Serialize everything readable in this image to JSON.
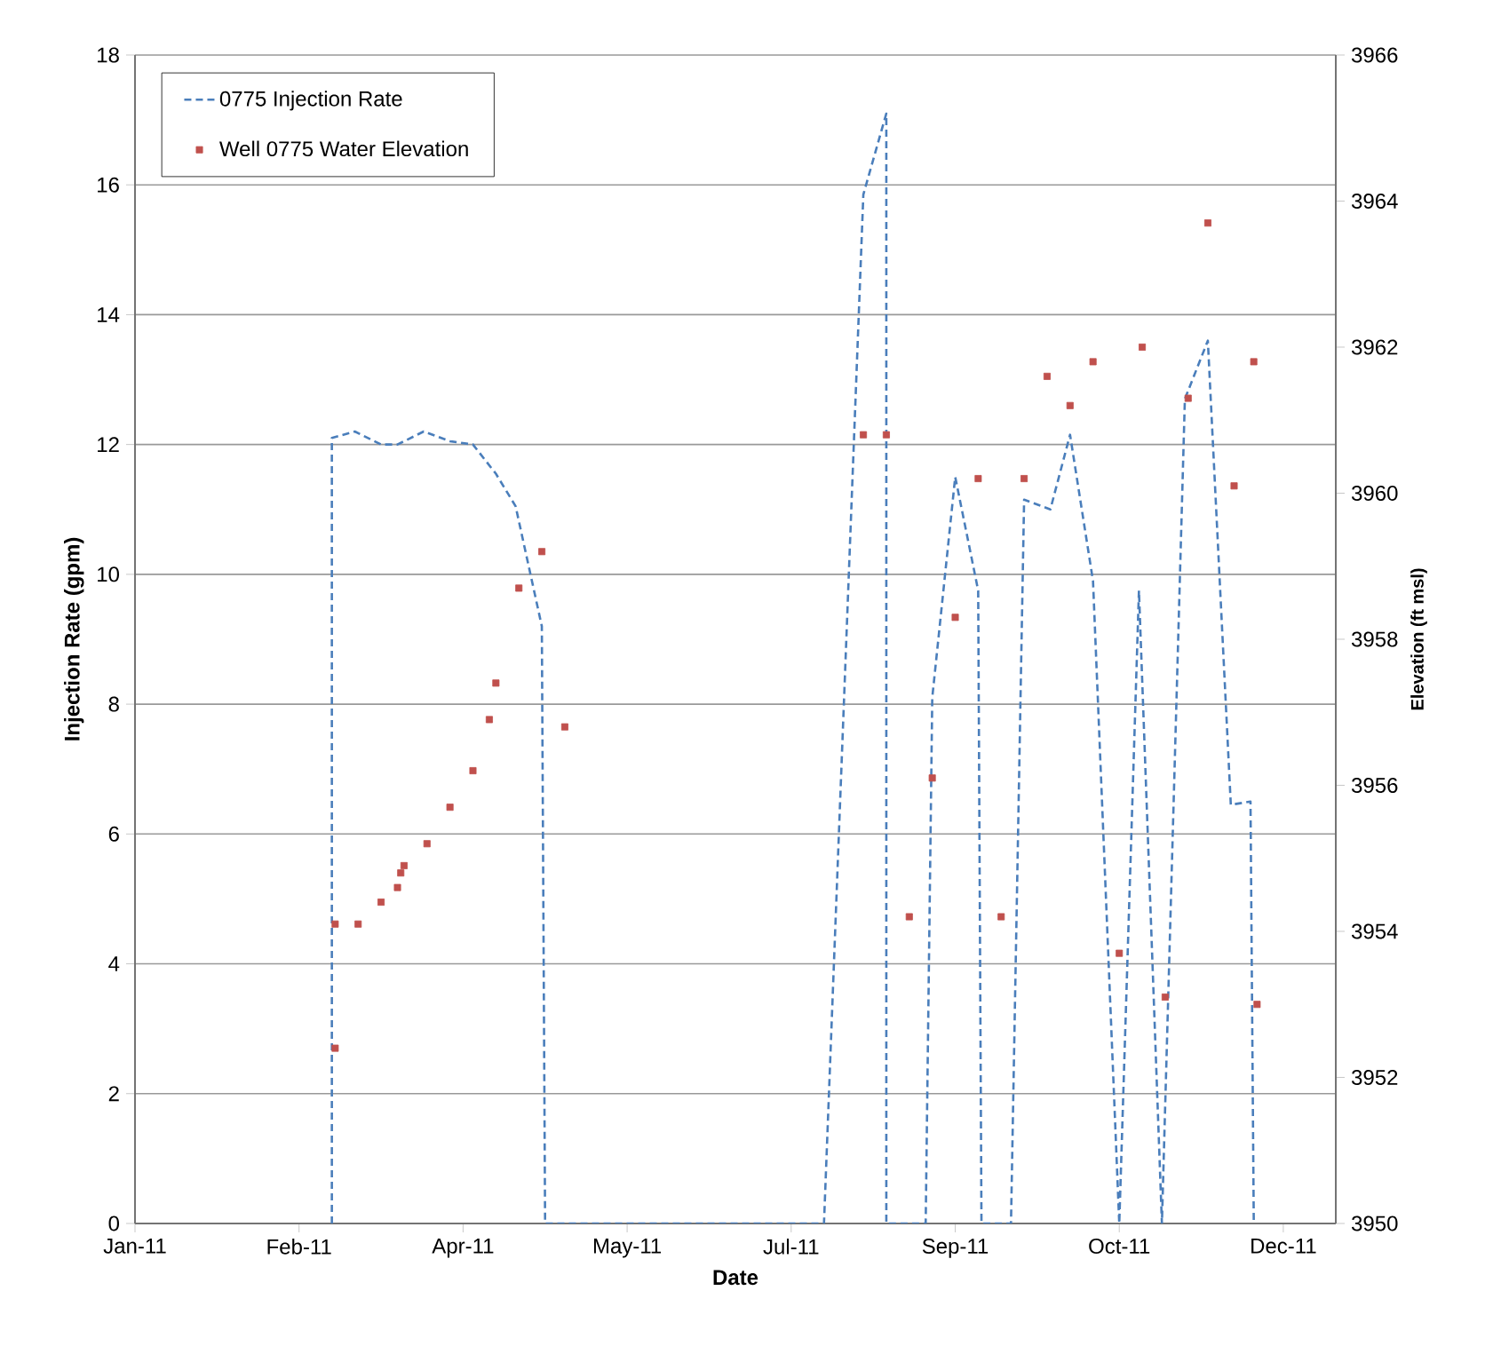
{
  "chart_data": {
    "type": "line",
    "xlabel": "Date",
    "ylabel": "Injection Rate (gpm)",
    "y2label": "Elevation (ft msl)",
    "xlim": [
      "2011-01-01",
      "2012-01-02"
    ],
    "xticks": [
      {
        "value": "2011-01-01",
        "label": "Jan-11"
      },
      {
        "value": "2011-02-20",
        "label": "Feb-11"
      },
      {
        "value": "2011-04-11",
        "label": "Apr-11"
      },
      {
        "value": "2011-05-31",
        "label": "May-11"
      },
      {
        "value": "2011-07-20",
        "label": "Jul-11"
      },
      {
        "value": "2011-09-08",
        "label": "Sep-11"
      },
      {
        "value": "2011-10-28",
        "label": "Oct-11"
      },
      {
        "value": "2011-12-17",
        "label": "Dec-11"
      }
    ],
    "ylim": [
      0,
      18
    ],
    "yticks": [
      0,
      2,
      4,
      6,
      8,
      10,
      12,
      14,
      16,
      18
    ],
    "y2lim": [
      3950,
      3966
    ],
    "y2ticks": [
      3950,
      3952,
      3954,
      3956,
      3958,
      3960,
      3962,
      3964,
      3966
    ],
    "grid": "y",
    "legend": "top left",
    "series": [
      {
        "name": "0775 Injection Rate",
        "color": "#4a7ebb",
        "line_style": "dashed",
        "marker": "none",
        "x": [
          "2011-03-02",
          "2011-03-02",
          "2011-03-09",
          "2011-03-17",
          "2011-03-22",
          "2011-03-30",
          "2011-04-07",
          "2011-04-14",
          "2011-04-21",
          "2011-04-27",
          "2011-05-05",
          "2011-05-06",
          "2011-07-30",
          "2011-08-11",
          "2011-08-18",
          "2011-08-18",
          "2011-08-30",
          "2011-09-01",
          "2011-09-08",
          "2011-09-15",
          "2011-09-16",
          "2011-09-25",
          "2011-09-29",
          "2011-10-07",
          "2011-10-13",
          "2011-10-20",
          "2011-10-28",
          "2011-11-03",
          "2011-11-10",
          "2011-11-17",
          "2011-11-24",
          "2011-12-01",
          "2011-12-07",
          "2011-12-08"
        ],
        "values": [
          0,
          12.1,
          12.2,
          12.0,
          12.0,
          12.2,
          12.05,
          12.0,
          11.55,
          11.05,
          9.2,
          0,
          0,
          15.85,
          17.1,
          0,
          0,
          8.1,
          11.5,
          9.75,
          0,
          0,
          11.15,
          11.0,
          12.15,
          9.9,
          0,
          9.75,
          0,
          12.7,
          13.6,
          6.45,
          6.5,
          0
        ]
      },
      {
        "name": "Well 0775  Water Elevation",
        "type": "scatter",
        "color": "#c0504d",
        "axis": "y2",
        "marker": "square",
        "x": [
          "2011-03-03",
          "2011-03-03",
          "2011-03-10",
          "2011-03-17",
          "2011-03-22",
          "2011-03-23",
          "2011-03-24",
          "2011-03-31",
          "2011-04-07",
          "2011-04-14",
          "2011-04-19",
          "2011-04-21",
          "2011-04-28",
          "2011-05-05",
          "2011-05-12",
          "2011-08-11",
          "2011-08-18",
          "2011-08-25",
          "2011-09-01",
          "2011-09-08",
          "2011-09-15",
          "2011-09-22",
          "2011-09-29",
          "2011-10-06",
          "2011-10-13",
          "2011-10-20",
          "2011-10-28",
          "2011-11-04",
          "2011-11-11",
          "2011-11-18",
          "2011-11-24",
          "2011-12-02",
          "2011-12-08",
          "2011-12-09"
        ],
        "values": [
          3954.1,
          3952.4,
          3954.1,
          3954.4,
          3954.6,
          3954.8,
          3954.9,
          3955.2,
          3955.7,
          3956.2,
          3956.9,
          3957.4,
          3958.7,
          3959.2,
          3956.8,
          3960.8,
          3960.8,
          3954.2,
          3956.1,
          3958.3,
          3960.2,
          3954.2,
          3960.2,
          3961.6,
          3961.2,
          3961.8,
          3953.7,
          3962.0,
          3953.1,
          3961.3,
          3963.7,
          3960.1,
          3961.8,
          3953.0
        ]
      }
    ]
  }
}
